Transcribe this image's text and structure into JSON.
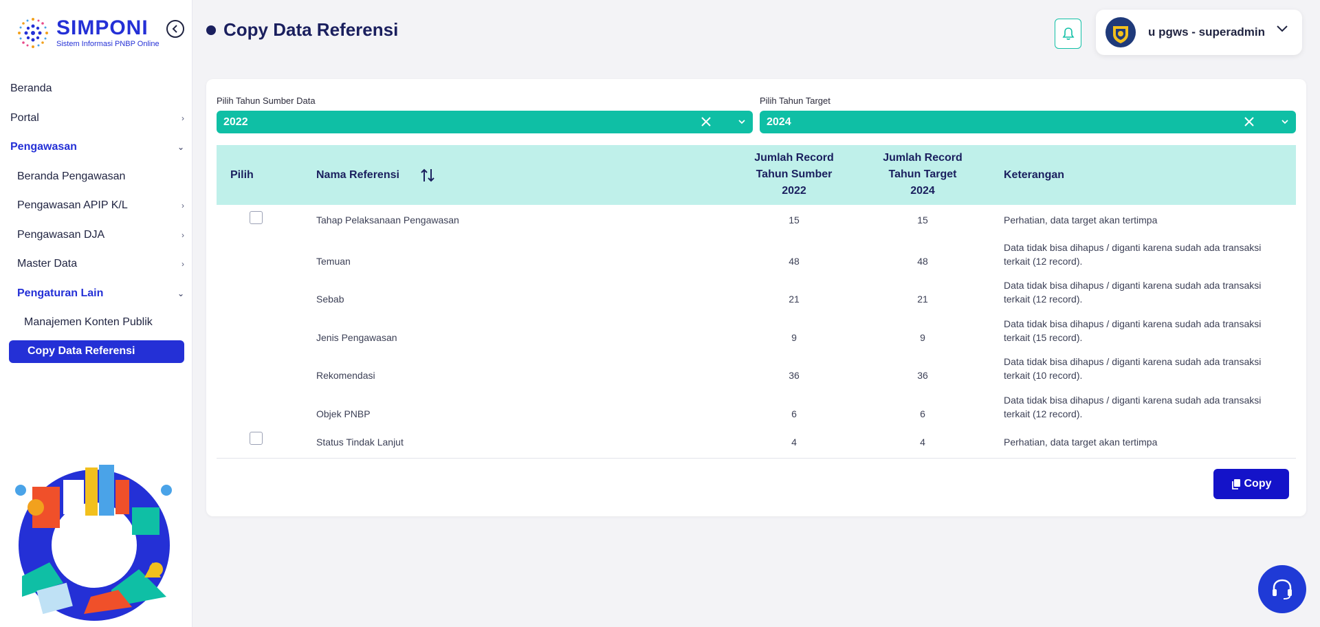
{
  "brand": {
    "title": "SIMPONI",
    "subtitle": "Sistem Informasi PNBP Online"
  },
  "sidebar": {
    "items": [
      {
        "label": "Beranda"
      },
      {
        "label": "Portal"
      },
      {
        "label": "Pengawasan"
      },
      {
        "label": "Beranda Pengawasan"
      },
      {
        "label": "Pengawasan APIP K/L"
      },
      {
        "label": "Pengawasan DJA"
      },
      {
        "label": "Master Data"
      },
      {
        "label": "Pengaturan Lain"
      },
      {
        "label": "Manajemen Konten Publik"
      },
      {
        "label": "Copy Data Referensi"
      }
    ]
  },
  "header": {
    "title": "Copy Data Referensi",
    "user_name": "u pgws - superadmin"
  },
  "form": {
    "source_label": "Pilih Tahun Sumber Data",
    "source_value": "2022",
    "target_label": "Pilih Tahun Target",
    "target_value": "2024"
  },
  "table": {
    "headers": {
      "pilih": "Pilih",
      "nama": "Nama Referensi",
      "sumber_line1": "Jumlah Record",
      "sumber_line2": "Tahun Sumber",
      "sumber_line3": "2022",
      "target_line1": "Jumlah Record",
      "target_line2": "Tahun Target",
      "target_line3": "2024",
      "keterangan": "Keterangan"
    },
    "rows": [
      {
        "nama": "Tahap Pelaksanaan Pengawasan",
        "sumber": "15",
        "target": "15",
        "ket1": "Perhatian, data target akan tertimpa",
        "ket2": ""
      },
      {
        "nama": "Temuan",
        "sumber": "48",
        "target": "48",
        "ket1": "Data tidak bisa dihapus / diganti karena sudah ada transaksi",
        "ket2": "terkait (12 record)."
      },
      {
        "nama": "Sebab",
        "sumber": "21",
        "target": "21",
        "ket1": "Data tidak bisa dihapus / diganti karena sudah ada transaksi",
        "ket2": "terkait (12 record)."
      },
      {
        "nama": "Jenis Pengawasan",
        "sumber": "9",
        "target": "9",
        "ket1": "Data tidak bisa dihapus / diganti karena sudah ada transaksi",
        "ket2": "terkait (15 record)."
      },
      {
        "nama": "Rekomendasi",
        "sumber": "36",
        "target": "36",
        "ket1": "Data tidak bisa dihapus / diganti karena sudah ada transaksi",
        "ket2": "terkait (10 record)."
      },
      {
        "nama": "Objek PNBP",
        "sumber": "6",
        "target": "6",
        "ket1": "Data tidak bisa dihapus / diganti karena sudah ada transaksi",
        "ket2": "terkait (12 record)."
      },
      {
        "nama": "Status Tindak Lanjut",
        "sumber": "4",
        "target": "4",
        "ket1": "Perhatian, data target akan tertimpa",
        "ket2": ""
      }
    ]
  },
  "actions": {
    "copy_label": "Copy"
  }
}
